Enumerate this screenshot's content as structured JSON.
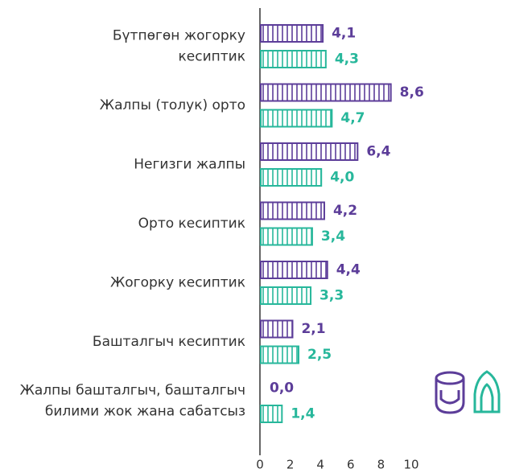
{
  "chart_data": {
    "type": "bar",
    "orientation": "horizontal",
    "categories": [
      "Бүтпөгөн жогорку\nкесиптик",
      "Жалпы (толук) орто",
      "Негизги жалпы",
      "Орто кесиптик",
      "Жогорку кесиптик",
      "Башталгыч кесиптик",
      "Жалпы башталгыч, башталгыч\nбилими жок жана сабатсыз"
    ],
    "series": [
      {
        "color": "#5c3d99",
        "values": [
          4.1,
          8.6,
          6.4,
          4.2,
          4.4,
          2.1,
          0.0
        ],
        "value_labels": [
          "4,1",
          "8,6",
          "6,4",
          "4,2",
          "4,4",
          "2,1",
          "0,0"
        ]
      },
      {
        "color": "#27b79b",
        "values": [
          4.3,
          4.7,
          4.0,
          3.4,
          3.3,
          2.5,
          1.4
        ],
        "value_labels": [
          "4,3",
          "4,7",
          "4,0",
          "3,4",
          "3,3",
          "2,5",
          "1,4"
        ]
      }
    ],
    "xlim": [
      0,
      10
    ],
    "xticks": [
      0,
      2,
      4,
      6,
      8,
      10
    ],
    "pattern": "vertical-hatch"
  }
}
